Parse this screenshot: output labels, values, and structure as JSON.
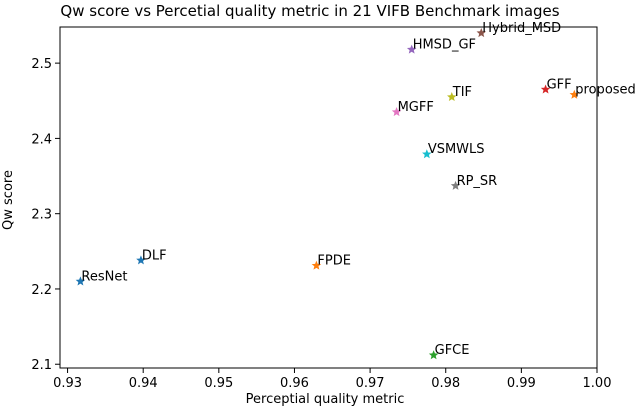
{
  "chart_data": {
    "type": "scatter",
    "title": "Qw score vs Percetial quality metric in 21 VIFB Benchmark images",
    "xlabel": "Perceptial quality metric",
    "ylabel": "Qw score",
    "xlim": [
      0.929,
      1.0
    ],
    "ylim": [
      2.095,
      2.548
    ],
    "xticks": [
      0.93,
      0.94,
      0.95,
      0.96,
      0.97,
      0.98,
      0.99,
      1.0
    ],
    "xtick_labels": [
      "0.93",
      "0.94",
      "0.95",
      "0.96",
      "0.97",
      "0.98",
      "0.99",
      "1.00"
    ],
    "yticks": [
      2.1,
      2.2,
      2.3,
      2.4,
      2.5
    ],
    "ytick_labels": [
      "2.1",
      "2.2",
      "2.3",
      "2.4",
      "2.5"
    ],
    "grid": false,
    "marker": "star",
    "points": [
      {
        "name": "ResNet",
        "x": 0.9317,
        "y": 2.21,
        "color": "#1f77b4"
      },
      {
        "name": "DLF",
        "x": 0.9397,
        "y": 2.238,
        "color": "#1f77b4"
      },
      {
        "name": "FPDE",
        "x": 0.9629,
        "y": 2.231,
        "color": "#ff7f0e"
      },
      {
        "name": "GFCE",
        "x": 0.9784,
        "y": 2.112,
        "color": "#2ca02c"
      },
      {
        "name": "Hybrid_MSD",
        "x": 0.9847,
        "y": 2.54,
        "color": "#8c564b"
      },
      {
        "name": "HMSD_GF",
        "x": 0.9755,
        "y": 2.518,
        "color": "#9467bd"
      },
      {
        "name": "TIF",
        "x": 0.9808,
        "y": 2.455,
        "color": "#bcbd22"
      },
      {
        "name": "MGFF",
        "x": 0.9735,
        "y": 2.435,
        "color": "#e377c2"
      },
      {
        "name": "VSMWLS",
        "x": 0.9775,
        "y": 2.379,
        "color": "#17becf"
      },
      {
        "name": "RP_SR",
        "x": 0.9813,
        "y": 2.337,
        "color": "#7f7f7f"
      },
      {
        "name": "GFF",
        "x": 0.9932,
        "y": 2.465,
        "color": "#d62728"
      },
      {
        "name": "proposed",
        "x": 0.997,
        "y": 2.458,
        "color": "#ff7f0e"
      }
    ]
  }
}
